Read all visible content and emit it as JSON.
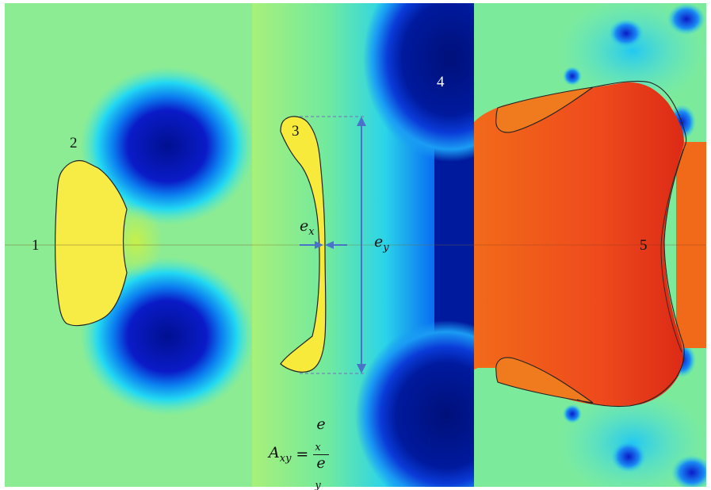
{
  "labels": {
    "region_1": "1",
    "region_2": "2",
    "region_3": "3",
    "region_4": "4",
    "region_5": "5"
  },
  "dimensions": {
    "ex_base": "e",
    "ex_sub": "x",
    "ey_base": "e",
    "ey_sub": "y"
  },
  "formula": {
    "lhs_base": "A",
    "lhs_sub": "xy",
    "equals": "=",
    "num_base": "e",
    "num_sub": "x",
    "den_base": "e",
    "den_sub": "y"
  },
  "colors": {
    "colormap": "jet",
    "arrow": "#4a73c8",
    "contour": "#222222",
    "dashed_guide": "#6f86b8"
  }
}
